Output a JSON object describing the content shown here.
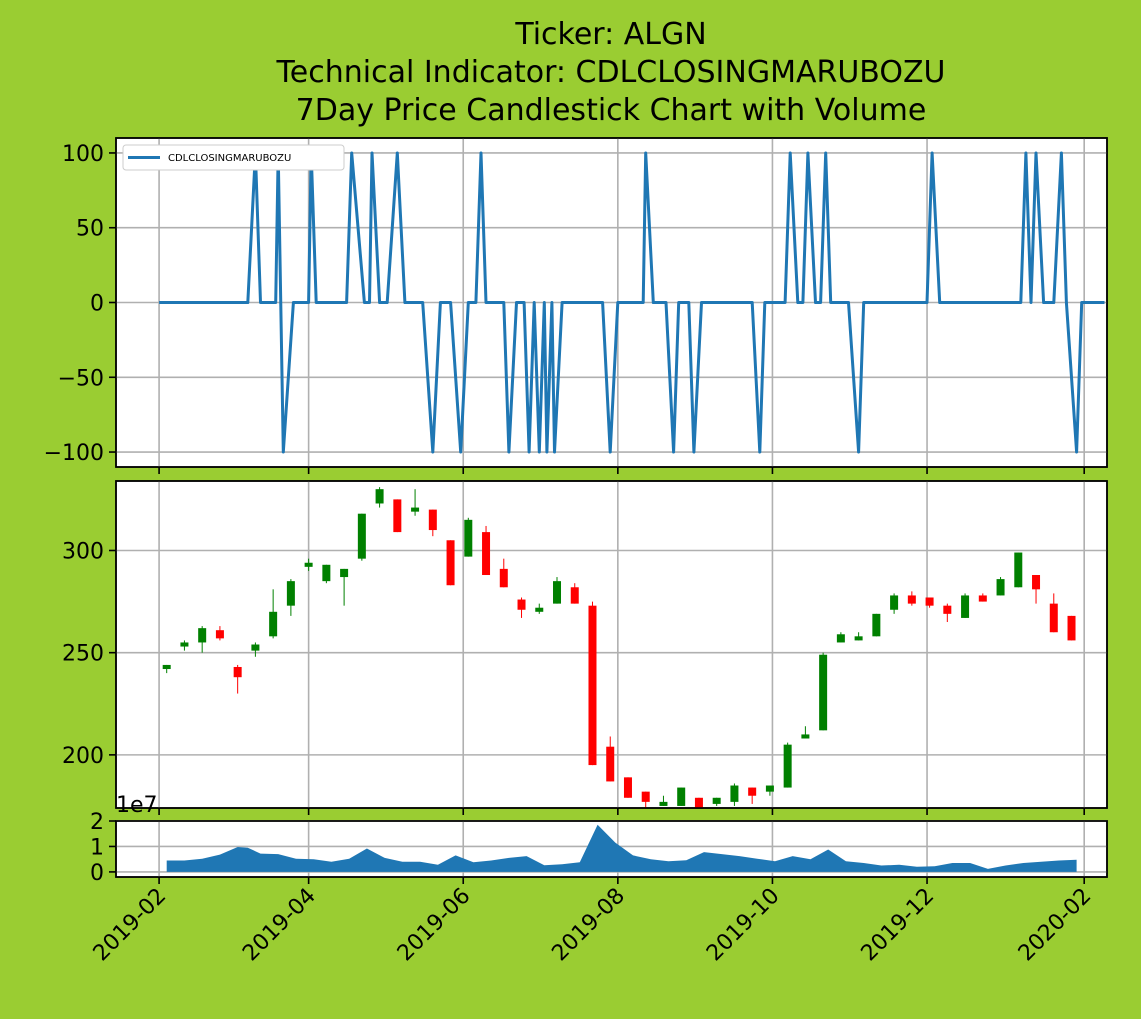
{
  "chart_data": {
    "type": "candlestick",
    "title_lines": [
      "Ticker: ALGN",
      "Technical Indicator: CDLCLOSINGMARUBOZU",
      "7Day Price Candlestick Chart with Volume"
    ],
    "x_ticks": [
      "2019-02",
      "2019-04",
      "2019-06",
      "2019-08",
      "2019-10",
      "2019-12",
      "2020-02"
    ],
    "grid": true,
    "colors": {
      "background": "#9acd32",
      "line": "#1f77b4",
      "up": "#008000",
      "down": "#ff0000",
      "volume": "#1f77b4"
    },
    "indicator": {
      "name": "CDLCLOSINGMARUBOZU",
      "legend": "upper-left",
      "ylim": [
        -110,
        110
      ],
      "y_ticks": [
        "100",
        "50",
        "0",
        "−50",
        "−100"
      ],
      "y_tick_values": [
        100,
        50,
        0,
        -50,
        -100
      ],
      "points": [
        [
          "2019-02-01",
          0
        ],
        [
          "2019-03-08",
          0
        ],
        [
          "2019-03-11",
          100
        ],
        [
          "2019-03-13",
          0
        ],
        [
          "2019-03-19",
          0
        ],
        [
          "2019-03-20",
          100
        ],
        [
          "2019-03-22",
          -100
        ],
        [
          "2019-03-26",
          0
        ],
        [
          "2019-04-01",
          0
        ],
        [
          "2019-04-02",
          100
        ],
        [
          "2019-04-04",
          0
        ],
        [
          "2019-04-16",
          0
        ],
        [
          "2019-04-18",
          100
        ],
        [
          "2019-04-23",
          0
        ],
        [
          "2019-04-25",
          0
        ],
        [
          "2019-04-26",
          100
        ],
        [
          "2019-04-29",
          0
        ],
        [
          "2019-05-02",
          0
        ],
        [
          "2019-05-06",
          100
        ],
        [
          "2019-05-09",
          0
        ],
        [
          "2019-05-16",
          0
        ],
        [
          "2019-05-20",
          -100
        ],
        [
          "2019-05-23",
          0
        ],
        [
          "2019-05-27",
          0
        ],
        [
          "2019-05-31",
          -100
        ],
        [
          "2019-06-03",
          0
        ],
        [
          "2019-06-06",
          0
        ],
        [
          "2019-06-08",
          100
        ],
        [
          "2019-06-10",
          0
        ],
        [
          "2019-06-17",
          0
        ],
        [
          "2019-06-19",
          -100
        ],
        [
          "2019-06-22",
          0
        ],
        [
          "2019-06-25",
          0
        ],
        [
          "2019-06-27",
          -100
        ],
        [
          "2019-06-29",
          0
        ],
        [
          "2019-07-01",
          -100
        ],
        [
          "2019-07-03",
          0
        ],
        [
          "2019-07-04",
          -100
        ],
        [
          "2019-07-06",
          0
        ],
        [
          "2019-07-07",
          -100
        ],
        [
          "2019-07-10",
          0
        ],
        [
          "2019-07-26",
          0
        ],
        [
          "2019-07-29",
          -100
        ],
        [
          "2019-08-01",
          0
        ],
        [
          "2019-08-11",
          0
        ],
        [
          "2019-08-12",
          100
        ],
        [
          "2019-08-15",
          0
        ],
        [
          "2019-08-20",
          0
        ],
        [
          "2019-08-23",
          -100
        ],
        [
          "2019-08-25",
          0
        ],
        [
          "2019-08-29",
          0
        ],
        [
          "2019-08-31",
          -100
        ],
        [
          "2019-09-03",
          0
        ],
        [
          "2019-09-23",
          0
        ],
        [
          "2019-09-26",
          -100
        ],
        [
          "2019-09-28",
          0
        ],
        [
          "2019-10-06",
          0
        ],
        [
          "2019-10-08",
          100
        ],
        [
          "2019-10-11",
          0
        ],
        [
          "2019-10-13",
          0
        ],
        [
          "2019-10-15",
          100
        ],
        [
          "2019-10-18",
          0
        ],
        [
          "2019-10-20",
          0
        ],
        [
          "2019-10-22",
          100
        ],
        [
          "2019-10-24",
          0
        ],
        [
          "2019-10-31",
          0
        ],
        [
          "2019-11-04",
          -100
        ],
        [
          "2019-11-06",
          0
        ],
        [
          "2019-12-01",
          0
        ],
        [
          "2019-12-03",
          100
        ],
        [
          "2019-12-06",
          0
        ],
        [
          "2020-01-07",
          0
        ],
        [
          "2020-01-09",
          100
        ],
        [
          "2020-01-11",
          0
        ],
        [
          "2020-01-13",
          100
        ],
        [
          "2020-01-16",
          0
        ],
        [
          "2020-01-20",
          0
        ],
        [
          "2020-01-23",
          100
        ],
        [
          "2020-01-25",
          0
        ],
        [
          "2020-01-29",
          -100
        ],
        [
          "2020-01-31",
          0
        ],
        [
          "2020-02-09",
          0
        ]
      ]
    },
    "price": {
      "ylim": [
        174,
        334
      ],
      "y_ticks": [
        "300",
        "250",
        "200"
      ],
      "y_tick_values": [
        300,
        250,
        200
      ],
      "candles": [
        [
          "2019-02-04",
          242,
          244,
          244,
          240
        ],
        [
          "2019-02-11",
          253,
          255,
          256,
          251
        ],
        [
          "2019-02-18",
          255,
          262,
          263,
          250
        ],
        [
          "2019-02-25",
          261,
          257,
          263,
          256
        ],
        [
          "2019-03-04",
          243,
          238,
          244,
          230
        ],
        [
          "2019-03-11",
          251,
          254,
          255,
          248
        ],
        [
          "2019-03-18",
          258,
          270,
          281,
          257
        ],
        [
          "2019-03-25",
          273,
          285,
          286,
          268
        ],
        [
          "2019-04-01",
          292,
          294,
          296,
          290
        ],
        [
          "2019-04-08",
          285,
          293,
          293,
          284
        ],
        [
          "2019-04-15",
          287,
          291,
          291,
          273
        ],
        [
          "2019-04-22",
          296,
          318,
          318,
          295
        ],
        [
          "2019-04-29",
          323,
          330,
          331,
          321
        ],
        [
          "2019-05-06",
          325,
          309,
          325,
          309
        ],
        [
          "2019-05-13",
          319,
          321,
          330,
          317
        ],
        [
          "2019-05-20",
          320,
          310,
          320,
          307
        ],
        [
          "2019-05-27",
          305,
          283,
          305,
          283
        ],
        [
          "2019-06-03",
          297,
          315,
          316,
          297
        ],
        [
          "2019-06-10",
          309,
          288,
          312,
          288
        ],
        [
          "2019-06-17",
          291,
          282,
          296,
          282
        ],
        [
          "2019-06-24",
          276,
          271,
          277,
          267
        ],
        [
          "2019-07-01",
          270,
          272,
          274,
          269
        ],
        [
          "2019-07-08",
          274,
          285,
          287,
          274
        ],
        [
          "2019-07-15",
          282,
          274,
          284,
          274
        ],
        [
          "2019-07-22",
          273,
          195,
          275,
          195
        ],
        [
          "2019-07-29",
          204,
          187,
          209,
          187
        ],
        [
          "2019-08-05",
          189,
          179,
          189,
          179
        ],
        [
          "2019-08-12",
          182,
          177,
          182,
          174
        ],
        [
          "2019-08-19",
          175,
          177,
          180,
          175
        ],
        [
          "2019-08-26",
          175,
          184,
          184,
          175
        ],
        [
          "2019-09-02",
          179,
          174,
          179,
          174
        ],
        [
          "2019-09-09",
          176,
          179,
          179,
          175
        ],
        [
          "2019-09-16",
          177,
          185,
          186,
          175
        ],
        [
          "2019-09-23",
          184,
          180,
          184,
          176
        ],
        [
          "2019-09-30",
          182,
          185,
          185,
          180
        ],
        [
          "2019-10-07",
          184,
          205,
          206,
          184
        ],
        [
          "2019-10-14",
          208,
          210,
          214,
          208
        ],
        [
          "2019-10-21",
          212,
          249,
          250,
          212
        ],
        [
          "2019-10-28",
          255,
          259,
          260,
          255
        ],
        [
          "2019-11-04",
          256,
          258,
          260,
          256
        ],
        [
          "2019-11-11",
          258,
          269,
          269,
          258
        ],
        [
          "2019-11-18",
          271,
          278,
          279,
          269
        ],
        [
          "2019-11-25",
          278,
          274,
          280,
          273
        ],
        [
          "2019-12-02",
          277,
          273,
          277,
          272
        ],
        [
          "2019-12-09",
          273,
          269,
          274,
          265
        ],
        [
          "2019-12-16",
          267,
          278,
          279,
          267
        ],
        [
          "2019-12-23",
          278,
          275,
          279,
          275
        ],
        [
          "2019-12-30",
          278,
          286,
          287,
          278
        ],
        [
          "2020-01-06",
          282,
          299,
          299,
          282
        ],
        [
          "2020-01-13",
          288,
          281,
          288,
          274
        ],
        [
          "2020-01-20",
          274,
          260,
          279,
          260
        ],
        [
          "2020-01-27",
          268,
          256,
          268,
          256
        ]
      ]
    },
    "volume": {
      "exponent_label": "1e7",
      "ylim": [
        -0.2,
        2.0
      ],
      "y_ticks": [
        "2",
        "1",
        "0"
      ],
      "y_tick_values": [
        2,
        1,
        0
      ],
      "series": [
        [
          "2019-02-04",
          0.45
        ],
        [
          "2019-02-11",
          0.45
        ],
        [
          "2019-02-18",
          0.52
        ],
        [
          "2019-02-25",
          0.68
        ],
        [
          "2019-03-04",
          0.98
        ],
        [
          "2019-03-08",
          0.95
        ],
        [
          "2019-03-13",
          0.72
        ],
        [
          "2019-03-20",
          0.7
        ],
        [
          "2019-03-27",
          0.52
        ],
        [
          "2019-04-03",
          0.5
        ],
        [
          "2019-04-10",
          0.4
        ],
        [
          "2019-04-17",
          0.52
        ],
        [
          "2019-04-24",
          0.92
        ],
        [
          "2019-05-01",
          0.55
        ],
        [
          "2019-05-08",
          0.4
        ],
        [
          "2019-05-15",
          0.4
        ],
        [
          "2019-05-22",
          0.28
        ],
        [
          "2019-05-29",
          0.65
        ],
        [
          "2019-06-05",
          0.38
        ],
        [
          "2019-06-12",
          0.45
        ],
        [
          "2019-06-19",
          0.55
        ],
        [
          "2019-06-26",
          0.62
        ],
        [
          "2019-07-03",
          0.26
        ],
        [
          "2019-07-10",
          0.3
        ],
        [
          "2019-07-17",
          0.38
        ],
        [
          "2019-07-24",
          1.85
        ],
        [
          "2019-07-31",
          1.15
        ],
        [
          "2019-08-07",
          0.65
        ],
        [
          "2019-08-14",
          0.5
        ],
        [
          "2019-08-21",
          0.42
        ],
        [
          "2019-08-28",
          0.46
        ],
        [
          "2019-09-04",
          0.78
        ],
        [
          "2019-09-11",
          0.7
        ],
        [
          "2019-09-18",
          0.62
        ],
        [
          "2019-09-25",
          0.52
        ],
        [
          "2019-10-02",
          0.42
        ],
        [
          "2019-10-09",
          0.62
        ],
        [
          "2019-10-16",
          0.5
        ],
        [
          "2019-10-23",
          0.88
        ],
        [
          "2019-10-30",
          0.42
        ],
        [
          "2019-11-06",
          0.35
        ],
        [
          "2019-11-13",
          0.25
        ],
        [
          "2019-11-20",
          0.28
        ],
        [
          "2019-11-27",
          0.2
        ],
        [
          "2019-12-04",
          0.22
        ],
        [
          "2019-12-11",
          0.35
        ],
        [
          "2019-12-18",
          0.35
        ],
        [
          "2019-12-25",
          0.12
        ],
        [
          "2020-01-01",
          0.25
        ],
        [
          "2020-01-08",
          0.35
        ],
        [
          "2020-01-15",
          0.4
        ],
        [
          "2020-01-22",
          0.45
        ],
        [
          "2020-01-29",
          0.48
        ]
      ]
    }
  }
}
